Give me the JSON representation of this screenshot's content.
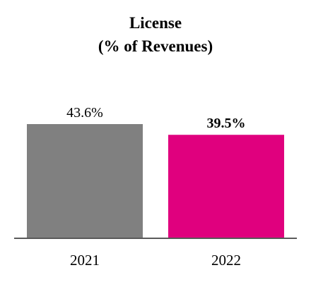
{
  "chart_data": {
    "type": "bar",
    "title": [
      "License",
      "(% of Revenues)"
    ],
    "categories": [
      "2021",
      "2022"
    ],
    "values": [
      43.6,
      39.5
    ],
    "data_labels": [
      "43.6%",
      "39.5%"
    ],
    "data_label_bold": [
      false,
      true
    ],
    "colors": [
      "#808080",
      "#E0007E"
    ],
    "axis_color": "#5a5a5a",
    "ylim": [
      0,
      43.6
    ],
    "grid": false,
    "legend": "none"
  }
}
